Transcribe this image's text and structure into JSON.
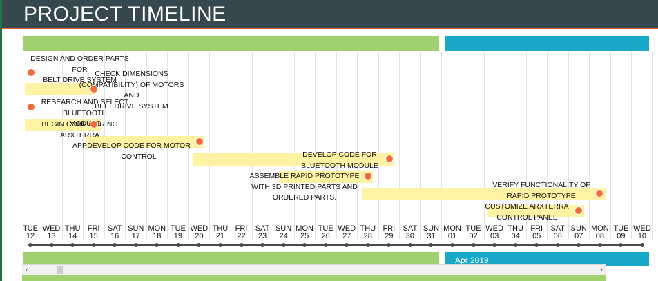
{
  "window": {
    "title": "PROJECT TIMELINE"
  },
  "colors": {
    "header": "#37474f",
    "accent_line": "#e8592b",
    "band_green": "#9fd26e",
    "band_blue": "#17a7c8",
    "task_bar": "#fff2a3",
    "milestone": "#f26b3a"
  },
  "tasks": [
    {
      "label": "DESIGN AND ORDER PARTS FOR\nBELT DRIVE SYSTEM"
    },
    {
      "label": "CHECK DIMENSIONS\n(COMPATIBILITY) OF MOTORS AND\nBELT DRIVE SYSTEM"
    },
    {
      "label": "RESEARCH AND SELECT BLUETOOTH\nMODULE"
    },
    {
      "label": "BEGIN CONFIGURING ARXTERRA\nAPP"
    },
    {
      "label": "DEVELOP CODE FOR MOTOR\nCONTROL"
    },
    {
      "label": "DEVELOP CODE FOR\nBLUETOOTH MODULE"
    },
    {
      "label": "ASSEMBLE RAPID PROTOTYPE\nWITH 3D PRINTED PARTS AND\nORDERED PARTS."
    },
    {
      "label": "VERIFY FUNCTIONALITY OF\nRAPID PROTOTYPE"
    },
    {
      "label": "CUSTOMIZE ARXTERRA\nCONTROL PANEL"
    }
  ],
  "days": [
    {
      "dow": "TUE",
      "num": "12"
    },
    {
      "dow": "WED",
      "num": "13"
    },
    {
      "dow": "THU",
      "num": "14"
    },
    {
      "dow": "FRI",
      "num": "15"
    },
    {
      "dow": "SAT",
      "num": "16"
    },
    {
      "dow": "SUN",
      "num": "17"
    },
    {
      "dow": "MON",
      "num": "18"
    },
    {
      "dow": "TUE",
      "num": "19"
    },
    {
      "dow": "WED",
      "num": "20"
    },
    {
      "dow": "THU",
      "num": "21"
    },
    {
      "dow": "FRI",
      "num": "22"
    },
    {
      "dow": "SAT",
      "num": "23"
    },
    {
      "dow": "SUN",
      "num": "24"
    },
    {
      "dow": "MON",
      "num": "25"
    },
    {
      "dow": "TUE",
      "num": "26"
    },
    {
      "dow": "WED",
      "num": "27"
    },
    {
      "dow": "THU",
      "num": "28"
    },
    {
      "dow": "FRI",
      "num": "29"
    },
    {
      "dow": "SAT",
      "num": "30"
    },
    {
      "dow": "SUN",
      "num": "31"
    },
    {
      "dow": "MON",
      "num": "01"
    },
    {
      "dow": "TUE",
      "num": "02"
    },
    {
      "dow": "WED",
      "num": "03"
    },
    {
      "dow": "THU",
      "num": "04"
    },
    {
      "dow": "FRI",
      "num": "05"
    },
    {
      "dow": "SAT",
      "num": "06"
    },
    {
      "dow": "SUN",
      "num": "07"
    },
    {
      "dow": "MON",
      "num": "08"
    },
    {
      "dow": "TUE",
      "num": "09"
    },
    {
      "dow": "WED",
      "num": "10"
    }
  ],
  "footer": {
    "month_label": "Apr 2019"
  },
  "scrollbar": {
    "left_icon": "chevron-left-icon",
    "right_icon": "chevron-right-icon",
    "left_glyph": "‹",
    "right_glyph": "›"
  }
}
